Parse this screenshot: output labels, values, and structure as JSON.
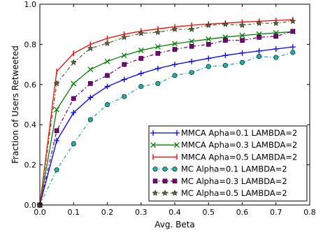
{
  "chart_data": {
    "type": "line",
    "xlabel": "Avg. Beta",
    "ylabel": "Fraction of Users Retweeted",
    "xlim": [
      0.0,
      0.8
    ],
    "ylim": [
      0.0,
      1.0
    ],
    "xticks": [
      "0.0",
      "0.1",
      "0.2",
      "0.3",
      "0.4",
      "0.5",
      "0.6",
      "0.7",
      "0.8"
    ],
    "yticks": [
      "0.0",
      "0.2",
      "0.4",
      "0.6",
      "0.8",
      "1.0"
    ],
    "grid": false,
    "legend_position": "lower-right",
    "x": [
      0.0,
      0.05,
      0.1,
      0.15,
      0.2,
      0.25,
      0.3,
      0.35,
      0.4,
      0.45,
      0.5,
      0.55,
      0.6,
      0.65,
      0.7,
      0.75
    ],
    "series": [
      {
        "name": "MMCA Apha=0.1 LAMBDA=2",
        "color": "#0000ff",
        "marker": "plus",
        "line": "solid",
        "values": [
          0.0,
          0.32,
          0.46,
          0.535,
          0.59,
          0.625,
          0.655,
          0.68,
          0.7,
          0.715,
          0.73,
          0.745,
          0.757,
          0.767,
          0.777,
          0.787
        ]
      },
      {
        "name": "MMCA Apha=0.3 LAMBDA=2",
        "color": "#008000",
        "marker": "x",
        "line": "solid",
        "values": [
          0.0,
          0.475,
          0.605,
          0.675,
          0.715,
          0.745,
          0.77,
          0.788,
          0.803,
          0.815,
          0.826,
          0.836,
          0.844,
          0.851,
          0.857,
          0.863
        ]
      },
      {
        "name": "MMCA Apha=0.5 LAMBDA=2",
        "color": "#ff0000",
        "marker": "vline",
        "line": "solid",
        "values": [
          0.0,
          0.665,
          0.755,
          0.8,
          0.83,
          0.85,
          0.866,
          0.877,
          0.887,
          0.895,
          0.901,
          0.906,
          0.911,
          0.915,
          0.919,
          0.923
        ]
      },
      {
        "name": "MC Alpha=0.1 LAMBDA=2",
        "color": "#20b2aa",
        "marker": "circle",
        "line": "dashdot",
        "values": [
          0.0,
          0.175,
          0.305,
          0.425,
          0.5,
          0.54,
          0.59,
          0.605,
          0.645,
          0.66,
          0.69,
          0.695,
          0.71,
          0.74,
          0.735,
          0.76
        ]
      },
      {
        "name": "MC Alpha=0.3 LAMBDA=2",
        "color": "#800080",
        "marker": "square",
        "line": "dashdot",
        "values": [
          0.0,
          0.37,
          0.53,
          0.605,
          0.645,
          0.7,
          0.73,
          0.755,
          0.775,
          0.79,
          0.8,
          0.82,
          0.82,
          0.835,
          0.84,
          0.865
        ]
      },
      {
        "name": "MC Alpha=0.5 LAMBDA=2",
        "color": "#556b2f",
        "marker": "star",
        "line": "dashdot",
        "values": [
          0.0,
          0.605,
          0.71,
          0.78,
          0.805,
          0.835,
          0.855,
          0.86,
          0.875,
          0.875,
          0.895,
          0.9,
          0.895,
          0.905,
          0.905,
          0.915
        ]
      }
    ]
  }
}
